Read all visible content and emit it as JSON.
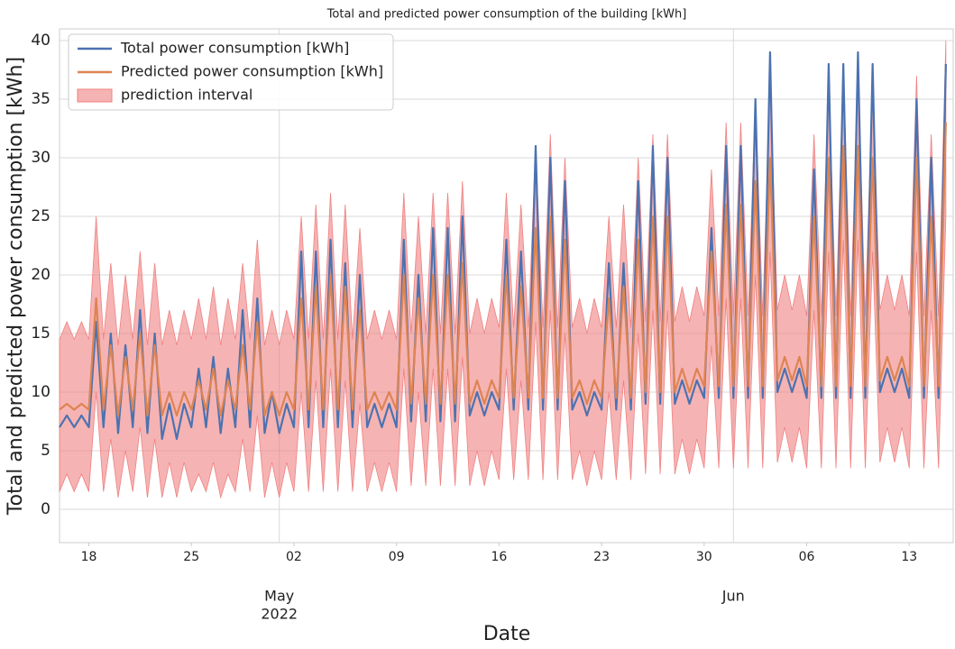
{
  "chart_data": {
    "type": "line",
    "title": "Total and predicted power consumption of the building [kWh]",
    "xlabel": "Date",
    "ylabel": "Total and predicted power consumption [kWh]",
    "legend": "upper left",
    "grid": true,
    "xlim": [
      "2022-04-16",
      "2022-06-16"
    ],
    "xticks": [
      {
        "value": "2022-04-18",
        "label": "18"
      },
      {
        "value": "2022-04-25",
        "label": "25"
      },
      {
        "value": "2022-05-02",
        "label": "02"
      },
      {
        "value": "2022-05-09",
        "label": "09"
      },
      {
        "value": "2022-05-16",
        "label": "16"
      },
      {
        "value": "2022-05-23",
        "label": "23"
      },
      {
        "value": "2022-05-30",
        "label": "30"
      },
      {
        "value": "2022-06-06",
        "label": "06"
      },
      {
        "value": "2022-06-13",
        "label": "13"
      }
    ],
    "xticks_major": [
      {
        "value": "2022-05-01",
        "label": "May",
        "sublabel": "2022"
      },
      {
        "value": "2022-06-01",
        "label": "Jun"
      }
    ],
    "ylim": [
      -2.85,
      41
    ],
    "yticks": [
      0,
      5,
      10,
      15,
      20,
      25,
      30,
      35,
      40
    ],
    "x": [
      "2022-04-16T00:00",
      "2022-04-16T12:00",
      "2022-04-17T00:00",
      "2022-04-17T12:00",
      "2022-04-18T00:00",
      "2022-04-18T12:00",
      "2022-04-19T00:00",
      "2022-04-19T12:00",
      "2022-04-20T00:00",
      "2022-04-20T12:00",
      "2022-04-21T00:00",
      "2022-04-21T12:00",
      "2022-04-22T00:00",
      "2022-04-22T12:00",
      "2022-04-23T00:00",
      "2022-04-23T12:00",
      "2022-04-24T00:00",
      "2022-04-24T12:00",
      "2022-04-25T00:00",
      "2022-04-25T12:00",
      "2022-04-26T00:00",
      "2022-04-26T12:00",
      "2022-04-27T00:00",
      "2022-04-27T12:00",
      "2022-04-28T00:00",
      "2022-04-28T12:00",
      "2022-04-29T00:00",
      "2022-04-29T12:00",
      "2022-04-30T00:00",
      "2022-04-30T12:00",
      "2022-05-01T00:00",
      "2022-05-01T12:00",
      "2022-05-02T00:00",
      "2022-05-02T12:00",
      "2022-05-03T00:00",
      "2022-05-03T12:00",
      "2022-05-04T00:00",
      "2022-05-04T12:00",
      "2022-05-05T00:00",
      "2022-05-05T12:00",
      "2022-05-06T00:00",
      "2022-05-06T12:00",
      "2022-05-07T00:00",
      "2022-05-07T12:00",
      "2022-05-08T00:00",
      "2022-05-08T12:00",
      "2022-05-09T00:00",
      "2022-05-09T12:00",
      "2022-05-10T00:00",
      "2022-05-10T12:00",
      "2022-05-11T00:00",
      "2022-05-11T12:00",
      "2022-05-12T00:00",
      "2022-05-12T12:00",
      "2022-05-13T00:00",
      "2022-05-13T12:00",
      "2022-05-14T00:00",
      "2022-05-14T12:00",
      "2022-05-15T00:00",
      "2022-05-15T12:00",
      "2022-05-16T00:00",
      "2022-05-16T12:00",
      "2022-05-17T00:00",
      "2022-05-17T12:00",
      "2022-05-18T00:00",
      "2022-05-18T12:00",
      "2022-05-19T00:00",
      "2022-05-19T12:00",
      "2022-05-20T00:00",
      "2022-05-20T12:00",
      "2022-05-21T00:00",
      "2022-05-21T12:00",
      "2022-05-22T00:00",
      "2022-05-22T12:00",
      "2022-05-23T00:00",
      "2022-05-23T12:00",
      "2022-05-24T00:00",
      "2022-05-24T12:00",
      "2022-05-25T00:00",
      "2022-05-25T12:00",
      "2022-05-26T00:00",
      "2022-05-26T12:00",
      "2022-05-27T00:00",
      "2022-05-27T12:00",
      "2022-05-28T00:00",
      "2022-05-28T12:00",
      "2022-05-29T00:00",
      "2022-05-29T12:00",
      "2022-05-30T00:00",
      "2022-05-30T12:00",
      "2022-05-31T00:00",
      "2022-05-31T12:00",
      "2022-06-01T00:00",
      "2022-06-01T12:00",
      "2022-06-02T00:00",
      "2022-06-02T12:00",
      "2022-06-03T00:00",
      "2022-06-03T12:00",
      "2022-06-04T00:00",
      "2022-06-04T12:00",
      "2022-06-05T00:00",
      "2022-06-05T12:00",
      "2022-06-06T00:00",
      "2022-06-06T12:00",
      "2022-06-07T00:00",
      "2022-06-07T12:00",
      "2022-06-08T00:00",
      "2022-06-08T12:00",
      "2022-06-09T00:00",
      "2022-06-09T12:00",
      "2022-06-10T00:00",
      "2022-06-10T12:00",
      "2022-06-11T00:00",
      "2022-06-11T12:00",
      "2022-06-12T00:00",
      "2022-06-12T12:00",
      "2022-06-13T00:00",
      "2022-06-13T12:00",
      "2022-06-14T00:00",
      "2022-06-14T12:00",
      "2022-06-15T00:00",
      "2022-06-15T12:00"
    ],
    "band": {
      "name": "prediction interval",
      "color": "#f08080",
      "lower": [
        1.5,
        3,
        1.5,
        3,
        1.5,
        10,
        1.5,
        6,
        1,
        5,
        1.5,
        7,
        1,
        6,
        1,
        4,
        1,
        4,
        1.5,
        3,
        1.5,
        4,
        1,
        3,
        1.5,
        6,
        1.5,
        8,
        1,
        4,
        1,
        4,
        1.5,
        10,
        1.5,
        11,
        1.5,
        12,
        1.5,
        11,
        1.5,
        9,
        1.5,
        4,
        1.5,
        4,
        1.5,
        12,
        2,
        10,
        2,
        12,
        2,
        12,
        2,
        13,
        2,
        5,
        2,
        5,
        2.5,
        12,
        2.5,
        11,
        2.5,
        16,
        2.5,
        17,
        2.5,
        15,
        2.5,
        5,
        2,
        5,
        2.5,
        10,
        2.5,
        11,
        2.5,
        15,
        3,
        17,
        3,
        17,
        3,
        6,
        3,
        6,
        3.5,
        14,
        3.5,
        18,
        3.5,
        18,
        3.5,
        20,
        3.5,
        22,
        4,
        7,
        4,
        7,
        3.5,
        17,
        3.5,
        22,
        3.5,
        23,
        3.5,
        23,
        3.5,
        22,
        4,
        7,
        4,
        7,
        3.5,
        22,
        3.5,
        17,
        3.5,
        25
      ],
      "upper": [
        14.5,
        16,
        14.5,
        16,
        14.5,
        25,
        14.5,
        21,
        14,
        20,
        14.5,
        22,
        14,
        21,
        14,
        17,
        14,
        17,
        14.5,
        18,
        14.5,
        19,
        14,
        18,
        14.5,
        21,
        14.5,
        23,
        14,
        17,
        14,
        17,
        14.5,
        25,
        14.5,
        26,
        14.5,
        27,
        14.5,
        26,
        14.5,
        24,
        14.5,
        17,
        14.5,
        17,
        14.5,
        27,
        15,
        25,
        15,
        27,
        15,
        27,
        15,
        28,
        15,
        18,
        15,
        18,
        15.5,
        27,
        15.5,
        26,
        15.5,
        31,
        15.5,
        32,
        15.5,
        30,
        15.5,
        18,
        15,
        18,
        15.5,
        25,
        15.5,
        26,
        15.5,
        30,
        16,
        32,
        16,
        32,
        16,
        19,
        16,
        19,
        16.5,
        29,
        16.5,
        33,
        16.5,
        33,
        16.5,
        35,
        16.5,
        37,
        17,
        20,
        17,
        20,
        16.5,
        32,
        16.5,
        37,
        16.5,
        38,
        16.5,
        38,
        16.5,
        37,
        17,
        20,
        17,
        20,
        16.5,
        37,
        16.5,
        32,
        16.5,
        40
      ]
    },
    "series": [
      {
        "name": "Total power consumption [kWh]",
        "color": "#4c72b0",
        "values": [
          7,
          8,
          7,
          8,
          7,
          16,
          7,
          15,
          6.5,
          14,
          7,
          17,
          6.5,
          15,
          6,
          9,
          6,
          9,
          7,
          12,
          7,
          13,
          6.5,
          12,
          7,
          17,
          7,
          18,
          6.5,
          10,
          6.5,
          9,
          7,
          22,
          7,
          22,
          7,
          23,
          7,
          21,
          7,
          20,
          7,
          9,
          7,
          9,
          7,
          23,
          7.5,
          20,
          7.5,
          24,
          7.5,
          24,
          7.5,
          25,
          8,
          10,
          8,
          10,
          8.5,
          23,
          8.5,
          22,
          8.5,
          31,
          8.5,
          30,
          8.5,
          28,
          8.5,
          10,
          8,
          10,
          8.5,
          21,
          8.5,
          21,
          8.5,
          28,
          9,
          31,
          9,
          30,
          9,
          11,
          9,
          11,
          9.5,
          24,
          9.5,
          31,
          9.5,
          31,
          9.5,
          35,
          9.5,
          39,
          10,
          12,
          10,
          12,
          9.5,
          29,
          9.5,
          38,
          9.5,
          38,
          9.5,
          39,
          9.5,
          38,
          10,
          12,
          10,
          12,
          9.5,
          35,
          9.5,
          30,
          9.5,
          38
        ]
      },
      {
        "name": "Predicted power consumption [kWh]",
        "color": "#dd8452",
        "values": [
          8.5,
          9,
          8.5,
          9,
          8.5,
          18,
          8.5,
          14,
          8,
          13,
          8.5,
          15,
          8,
          14,
          8,
          10,
          8,
          10,
          8.5,
          11,
          8.5,
          12,
          8,
          11,
          8.5,
          14,
          8.5,
          16,
          8,
          10,
          8,
          10,
          8.5,
          18,
          8.5,
          19,
          8.5,
          20,
          8.5,
          19,
          8.5,
          17,
          8.5,
          10,
          8.5,
          10,
          8.5,
          20,
          9,
          18,
          9,
          20,
          9,
          20,
          9,
          21,
          9,
          11,
          9,
          11,
          9.5,
          20,
          9.5,
          19,
          9.5,
          24,
          9.5,
          25,
          9.5,
          23,
          9.5,
          11,
          9,
          11,
          9.5,
          18,
          9.5,
          19,
          9.5,
          23,
          10,
          25,
          10,
          25,
          10,
          12,
          10,
          12,
          10.5,
          22,
          10.5,
          26,
          10.5,
          26,
          10.5,
          28,
          10.5,
          30,
          11,
          13,
          11,
          13,
          10.5,
          25,
          10.5,
          30,
          10.5,
          31,
          10.5,
          31,
          10.5,
          30,
          11,
          13,
          11,
          13,
          10.5,
          30,
          10.5,
          25,
          10.5,
          33
        ]
      }
    ]
  }
}
